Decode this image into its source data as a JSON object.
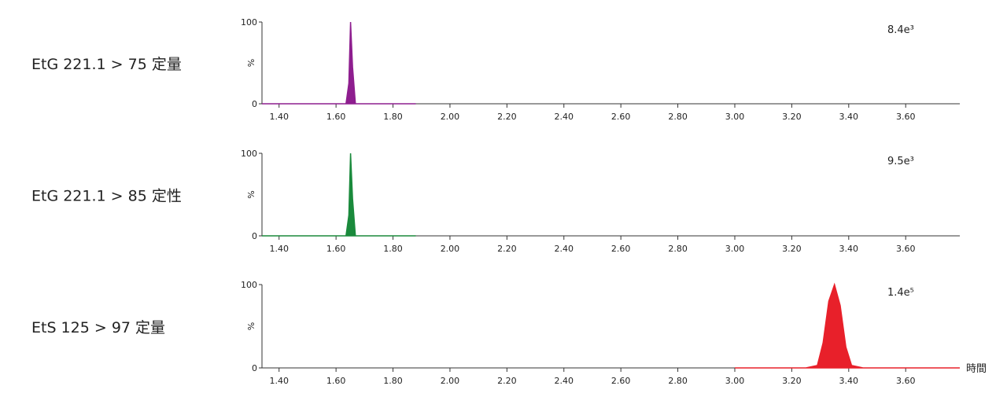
{
  "chart_data": [
    {
      "type": "line",
      "title": "EtG 221.1 > 75 定量",
      "annotation": "8.4e³",
      "ylabel": "%",
      "color": "#8e1e8f",
      "x": [
        1.34,
        1.6,
        1.635,
        1.645,
        1.651,
        1.658,
        1.668,
        1.7,
        1.88
      ],
      "values": [
        0,
        0,
        0,
        25,
        100,
        45,
        0,
        0,
        0
      ],
      "xlim": [
        1.34,
        3.79
      ],
      "ylim": [
        0,
        100
      ],
      "yticks": [
        0,
        100
      ],
      "xticks": [
        {
          "value": 1.4,
          "label": "1.40"
        },
        {
          "value": 1.6,
          "label": "1.60"
        },
        {
          "value": 1.8,
          "label": "1.80"
        },
        {
          "value": 2.0,
          "label": "2.00"
        },
        {
          "value": 2.2,
          "label": "2.20"
        },
        {
          "value": 2.4,
          "label": "2.40"
        },
        {
          "value": 2.6,
          "label": "2.60"
        },
        {
          "value": 2.8,
          "label": "2.80"
        },
        {
          "value": 3.0,
          "label": "3.00"
        },
        {
          "value": 3.2,
          "label": "3.20"
        },
        {
          "value": 3.4,
          "label": "3.40"
        },
        {
          "value": 3.6,
          "label": "3.60"
        }
      ]
    },
    {
      "type": "line",
      "title": "EtG 221.1 > 85 定性",
      "annotation": "9.5e³",
      "ylabel": "%",
      "color": "#1a8a3c",
      "x": [
        1.34,
        1.6,
        1.635,
        1.645,
        1.651,
        1.658,
        1.668,
        1.7,
        1.88
      ],
      "values": [
        0,
        0,
        0,
        25,
        100,
        45,
        0,
        0,
        0
      ],
      "xlim": [
        1.34,
        3.79
      ],
      "ylim": [
        0,
        100
      ],
      "yticks": [
        0,
        100
      ],
      "xticks": [
        {
          "value": 1.4,
          "label": "1.40"
        },
        {
          "value": 1.6,
          "label": "1.60"
        },
        {
          "value": 1.8,
          "label": "1.80"
        },
        {
          "value": 2.0,
          "label": "2.00"
        },
        {
          "value": 2.2,
          "label": "2.20"
        },
        {
          "value": 2.4,
          "label": "2.40"
        },
        {
          "value": 2.6,
          "label": "2.60"
        },
        {
          "value": 2.8,
          "label": "2.80"
        },
        {
          "value": 3.0,
          "label": "3.00"
        },
        {
          "value": 3.2,
          "label": "3.20"
        },
        {
          "value": 3.4,
          "label": "3.40"
        },
        {
          "value": 3.6,
          "label": "3.60"
        }
      ]
    },
    {
      "type": "line",
      "title": "EtS 125 > 97 定量",
      "annotation": "1.4e⁵",
      "ylabel": "%",
      "xlabel": "時間",
      "color": "#e8202a",
      "x": [
        3.0,
        3.25,
        3.29,
        3.31,
        3.33,
        3.35,
        3.37,
        3.39,
        3.41,
        3.45,
        3.79
      ],
      "values": [
        0,
        0,
        3,
        30,
        80,
        100,
        75,
        25,
        3,
        0,
        0
      ],
      "xlim": [
        1.34,
        3.79
      ],
      "ylim": [
        0,
        100
      ],
      "yticks": [
        0,
        100
      ],
      "xticks": [
        {
          "value": 1.4,
          "label": "1.40"
        },
        {
          "value": 1.6,
          "label": "1.60"
        },
        {
          "value": 1.8,
          "label": "1.80"
        },
        {
          "value": 2.0,
          "label": "2.00"
        },
        {
          "value": 2.2,
          "label": "2.20"
        },
        {
          "value": 2.4,
          "label": "2.40"
        },
        {
          "value": 2.6,
          "label": "2.60"
        },
        {
          "value": 2.8,
          "label": "2.80"
        },
        {
          "value": 3.0,
          "label": "3.00"
        },
        {
          "value": 3.2,
          "label": "3.20"
        },
        {
          "value": 3.4,
          "label": "3.40"
        },
        {
          "value": 3.6,
          "label": "3.60"
        }
      ]
    }
  ]
}
